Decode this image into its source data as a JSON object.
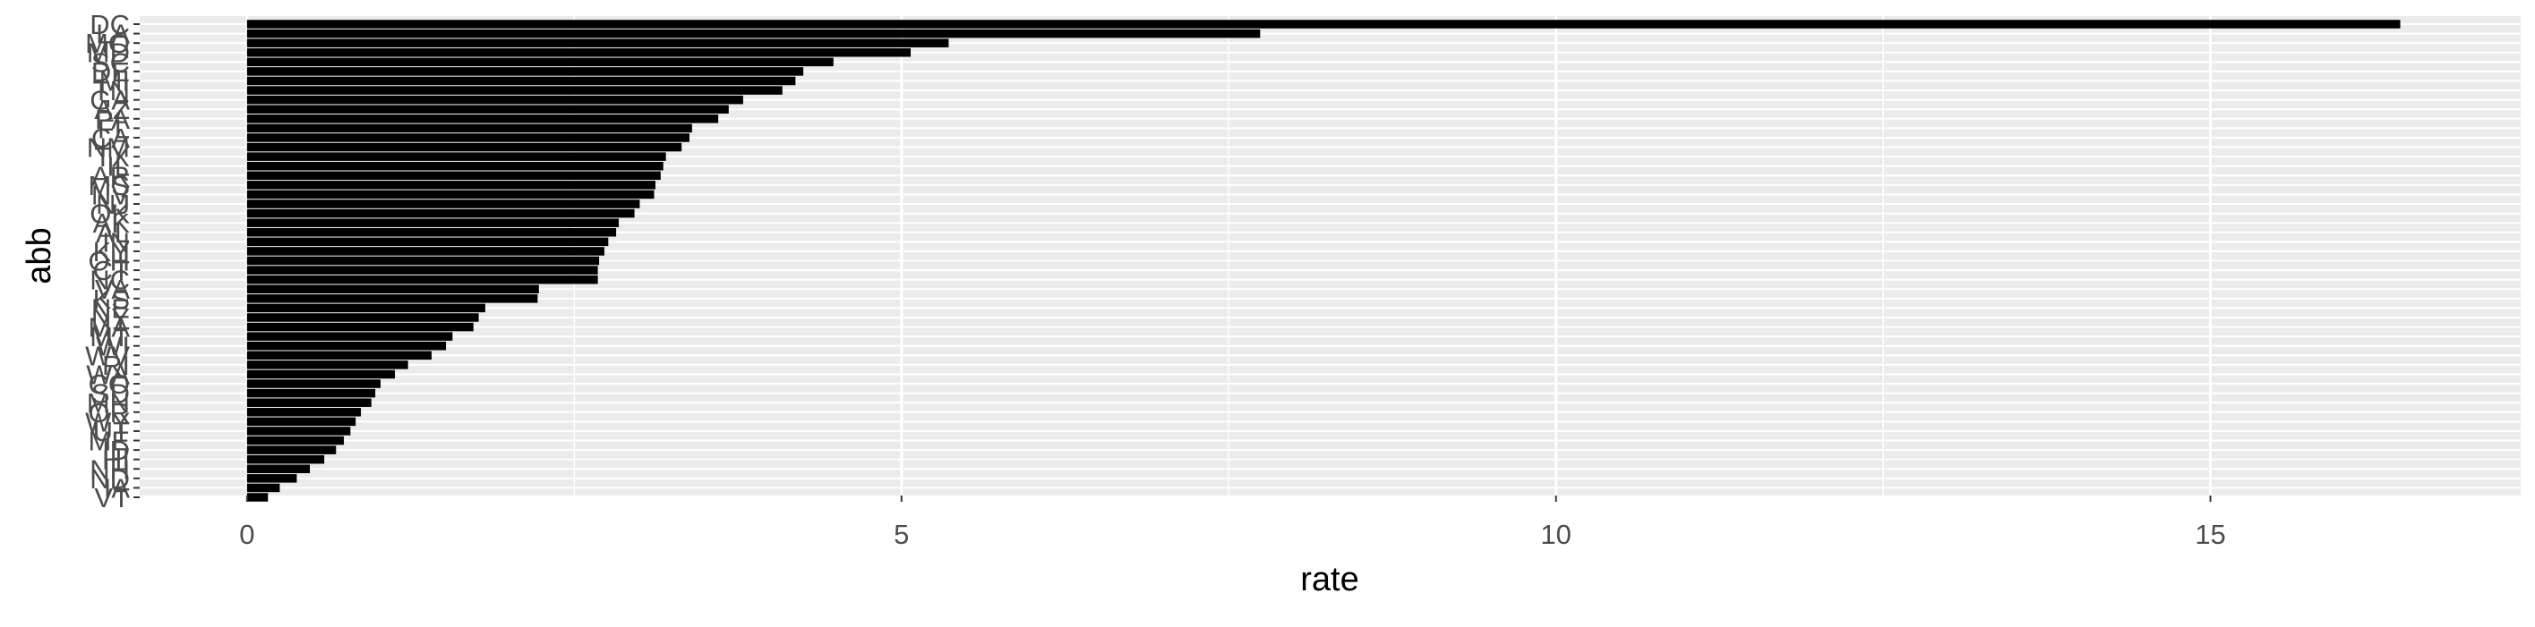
{
  "chart_data": {
    "type": "bar",
    "orientation": "horizontal",
    "xlabel": "rate",
    "ylabel": "abb",
    "xlim": [
      -0.82,
      17.37
    ],
    "xticks": [
      0,
      5,
      10,
      15
    ],
    "xtick_labels": [
      "0",
      "5",
      "10",
      "15"
    ],
    "grid": true,
    "bar_color": "#000000",
    "panel_color": "#ebebeb",
    "grid_color": "#ffffff",
    "categories": [
      "DC",
      "LA",
      "MO",
      "MD",
      "SC",
      "DE",
      "MI",
      "TN",
      "GA",
      "AZ",
      "PA",
      "FL",
      "CA",
      "NM",
      "TX",
      "IL",
      "AR",
      "MS",
      "NV",
      "NJ",
      "OK",
      "AK",
      "AL",
      "IN",
      "KY",
      "OH",
      "CT",
      "NC",
      "VA",
      "KS",
      "NE",
      "NY",
      "MA",
      "MT",
      "WI",
      "WV",
      "RI",
      "WA",
      "CO",
      "SD",
      "MN",
      "OR",
      "WY",
      "UT",
      "ME",
      "ID",
      "HI",
      "NH",
      "ND",
      "IA",
      "VT"
    ],
    "values": [
      16.45,
      7.74,
      5.36,
      5.07,
      4.48,
      4.25,
      4.19,
      4.09,
      3.79,
      3.68,
      3.6,
      3.4,
      3.38,
      3.32,
      3.2,
      3.18,
      3.16,
      3.12,
      3.11,
      3.0,
      2.96,
      2.84,
      2.82,
      2.76,
      2.73,
      2.69,
      2.68,
      2.68,
      2.23,
      2.22,
      1.82,
      1.77,
      1.73,
      1.57,
      1.52,
      1.41,
      1.23,
      1.13,
      1.02,
      0.98,
      0.95,
      0.87,
      0.83,
      0.79,
      0.74,
      0.68,
      0.59,
      0.48,
      0.38,
      0.25,
      0.16
    ]
  }
}
